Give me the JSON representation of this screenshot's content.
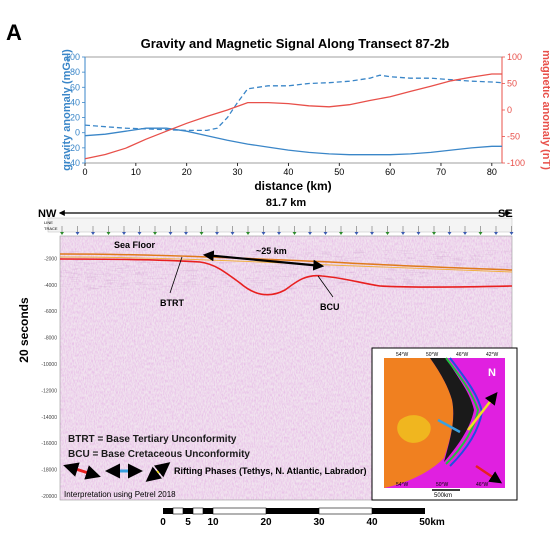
{
  "panel_letter": "A",
  "chart_data": {
    "type": "line",
    "title": "Gravity and Magnetic Signal Along Transect 87-2b",
    "xlabel": "distance (km)",
    "ylabel_left": "gravity anomaly (mGal)",
    "ylabel_right": "magnetic anomaly (nT)",
    "xlim": [
      0,
      82
    ],
    "ylim_left": [
      -40,
      100
    ],
    "ylim_right": [
      -100,
      100
    ],
    "x_ticks": [
      "0",
      "10",
      "20",
      "30",
      "40",
      "50",
      "60",
      "70",
      "80"
    ],
    "y_ticks_left": [
      "-40",
      "-20",
      "0",
      "20",
      "40",
      "60",
      "80",
      "100"
    ],
    "y_ticks_right": [
      "-100",
      "-50",
      "0",
      "50",
      "100"
    ],
    "left_axis_color": "#3a86c8",
    "right_axis_color": "#e8504a",
    "series": [
      {
        "style": "solid",
        "axis": "left",
        "color": "#3a86c8",
        "x": [
          0,
          4,
          8,
          12,
          16,
          20,
          24,
          28,
          32,
          36,
          40,
          44,
          48,
          52,
          56,
          60,
          64,
          68,
          72,
          76,
          80,
          82
        ],
        "y": [
          -4,
          -2,
          2,
          6,
          6,
          2,
          -4,
          -10,
          -15,
          -19,
          -23,
          -26,
          -28,
          -29,
          -29,
          -29,
          -28,
          -26,
          -23,
          -20,
          -18,
          -18
        ]
      },
      {
        "style": "dashed",
        "axis": "left",
        "color": "#3a86c8",
        "x": [
          0,
          4,
          8,
          12,
          16,
          20,
          24,
          26,
          28,
          30,
          32,
          36,
          40,
          44,
          48,
          52,
          56,
          58,
          60,
          64,
          68,
          72,
          76,
          80,
          82
        ],
        "y": [
          10,
          8,
          6,
          5,
          4,
          3,
          3,
          6,
          20,
          40,
          58,
          62,
          62,
          65,
          66,
          68,
          72,
          76,
          74,
          72,
          72,
          70,
          68,
          67,
          66
        ]
      },
      {
        "style": "solid",
        "axis": "right",
        "color": "#e8504a",
        "x": [
          0,
          4,
          8,
          12,
          16,
          20,
          24,
          28,
          32,
          36,
          40,
          44,
          48,
          52,
          56,
          60,
          64,
          68,
          72,
          76,
          80,
          82
        ],
        "y": [
          -92,
          -84,
          -72,
          -55,
          -40,
          -25,
          -12,
          0,
          14,
          14,
          12,
          8,
          6,
          10,
          18,
          25,
          35,
          45,
          55,
          62,
          68,
          68
        ]
      }
    ]
  },
  "seismic": {
    "distance_label": "81.7 km",
    "left_end": "NW",
    "right_end": "SE",
    "header_row_labels": [
      "LINE",
      "TRACE"
    ],
    "y_axis_label": "20 seconds",
    "y_ticks": [
      "-2000",
      "-4000",
      "-6000",
      "-8000",
      "-10000",
      "-12000",
      "-14000",
      "-16000",
      "-18000",
      "-20000"
    ],
    "sea_floor_label": "Sea Floor",
    "width_label": "~25 km",
    "btrt_label": "BTRT",
    "bcu_label": "BCU",
    "legend_btrt": "BTRT = Base Tertiary Unconformity",
    "legend_bcu": "BCU = Base Cretaceous Unconformity",
    "rifting_label": "Rifting Phases (Tethys, N. Atlantic, Labrador)",
    "software_note": "Interpretation using Petrel 2018",
    "inset_top_ticks": [
      "54°W",
      "50°W",
      "46°W",
      "42°W"
    ],
    "inset_bottom_ticks": [
      "54°W",
      "50°W",
      "46°W"
    ],
    "inset_scale": "500km",
    "north_label": "N",
    "colors": {
      "seafloor": "#e07a1a",
      "horizon": "#e82020",
      "phase_red": "#e82020",
      "phase_blue": "#3aa0e0",
      "phase_yellow": "#f0e020"
    }
  },
  "scale_bar": {
    "labels": [
      "0",
      "5",
      "10",
      "20",
      "30",
      "40",
      "50km"
    ]
  }
}
